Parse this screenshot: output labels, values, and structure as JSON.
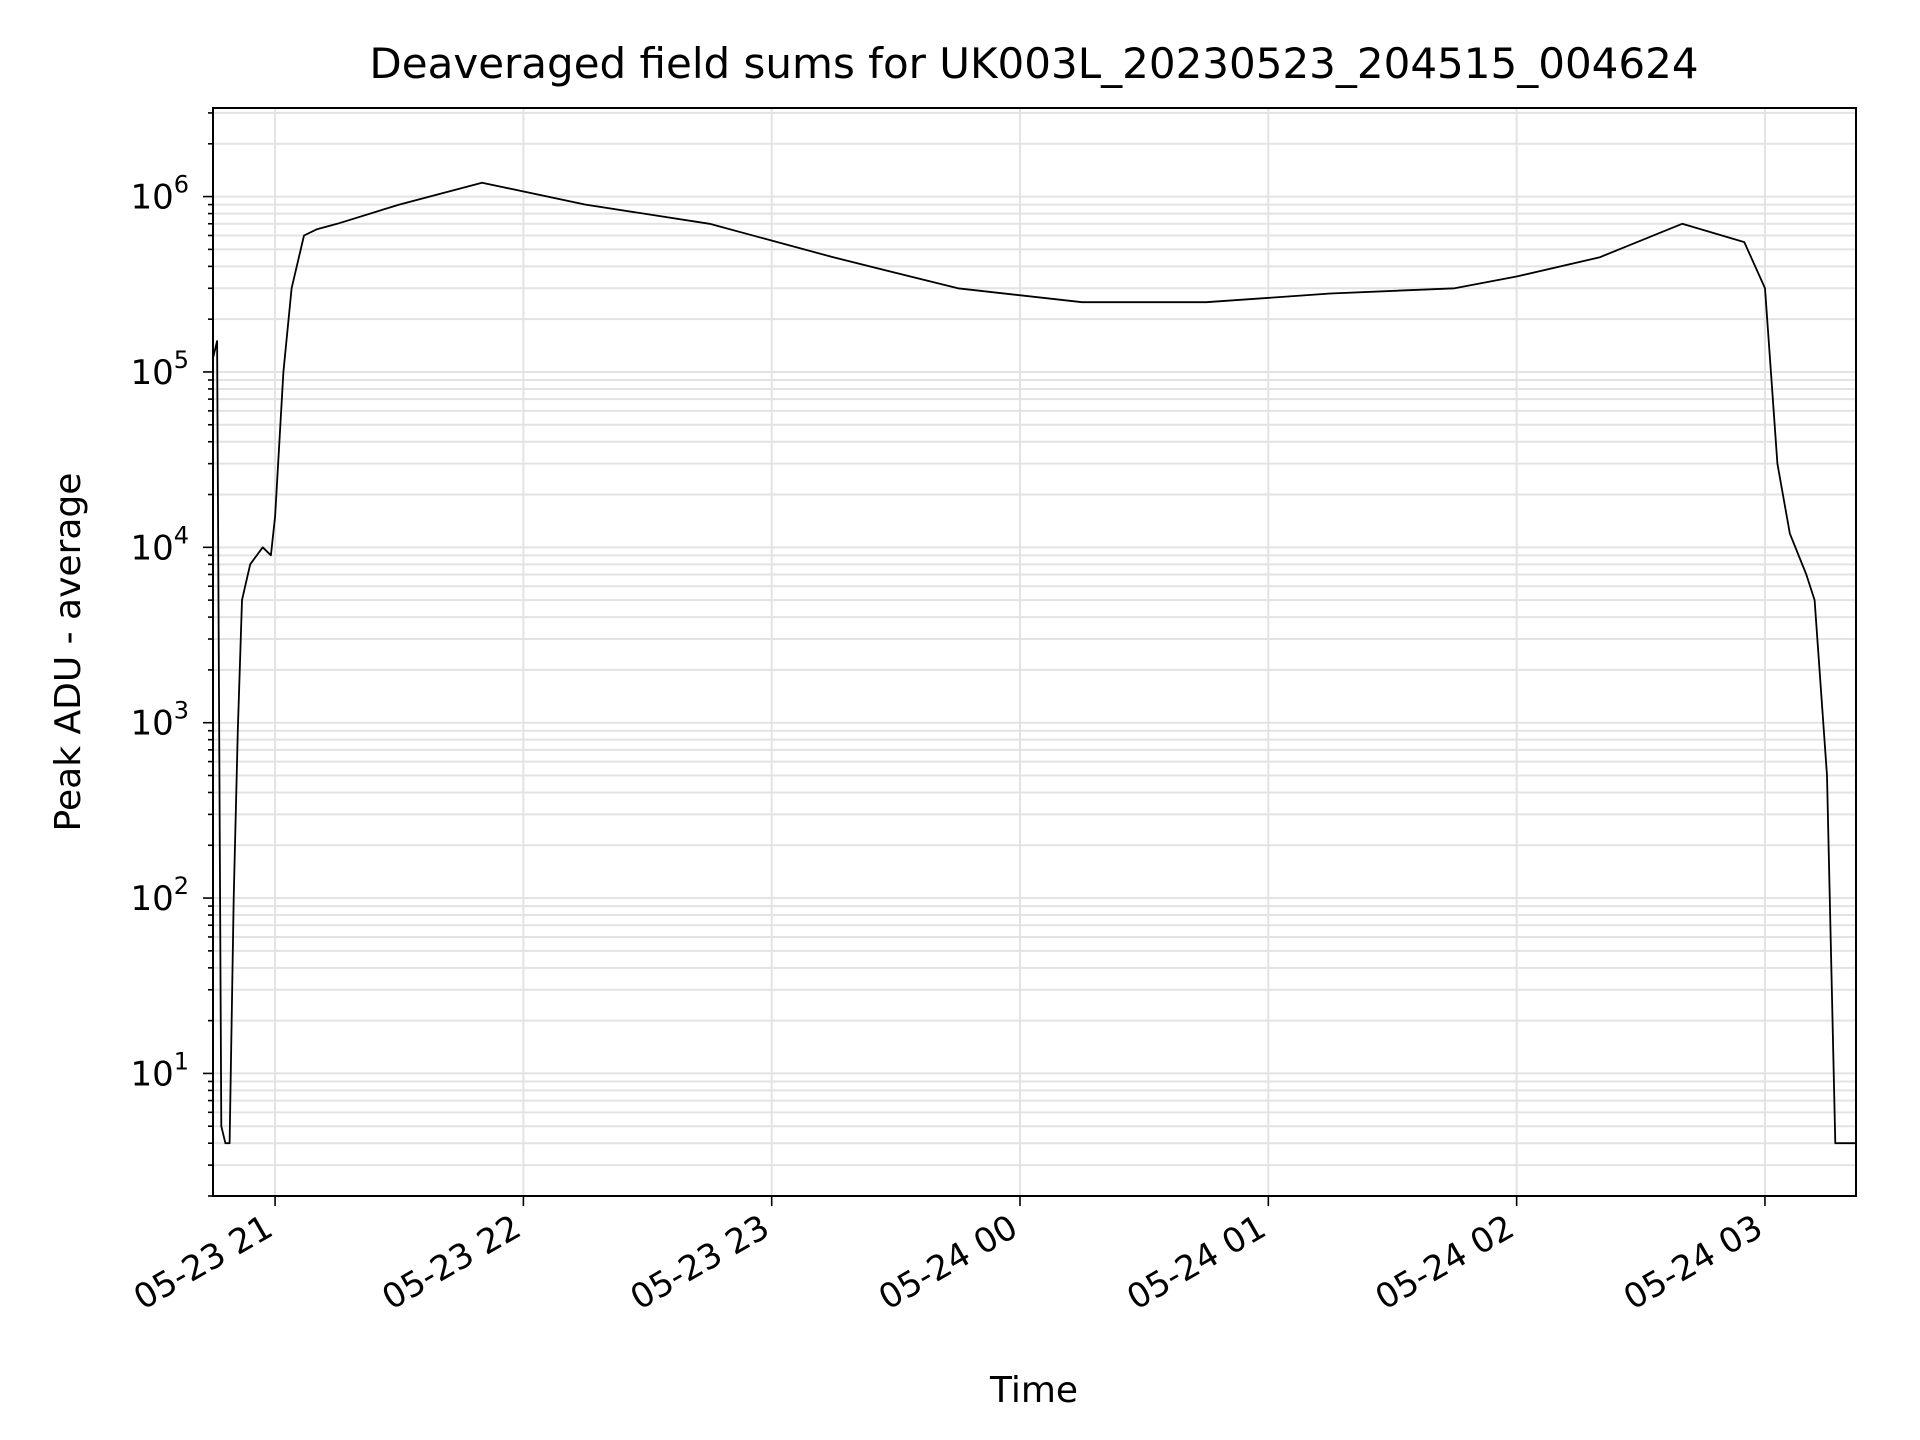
{
  "chart_data": {
    "type": "line",
    "title": "Deaveraged field sums for UK003L_20230523_204515_004624",
    "xlabel": "Time",
    "ylabel": "Peak ADU - average",
    "x_scale": "time",
    "y_scale": "log",
    "xlim": [
      "2023-05-23 20:45",
      "2023-05-24 03:22"
    ],
    "ylim": [
      2,
      3200000
    ],
    "grid": "major and minor",
    "line_color": "#000000",
    "x_ticks": [
      "05-23 21",
      "05-23 22",
      "05-23 23",
      "05-24 00",
      "05-24 01",
      "05-24 02",
      "05-24 03"
    ],
    "y_ticks": [
      {
        "base": "10",
        "exp": "1",
        "value": 10
      },
      {
        "base": "10",
        "exp": "2",
        "value": 100
      },
      {
        "base": "10",
        "exp": "3",
        "value": 1000
      },
      {
        "base": "10",
        "exp": "4",
        "value": 10000
      },
      {
        "base": "10",
        "exp": "5",
        "value": 100000
      },
      {
        "base": "10",
        "exp": "6",
        "value": 1000000
      }
    ],
    "series": [
      {
        "points": [
          [
            "2023-05-23 20:45",
            120000
          ],
          [
            "2023-05-23 20:46",
            150000
          ],
          [
            "2023-05-23 20:47",
            5
          ],
          [
            "2023-05-23 20:48",
            4
          ],
          [
            "2023-05-23 20:49",
            4
          ],
          [
            "2023-05-23 20:50",
            100
          ],
          [
            "2023-05-23 20:51",
            900
          ],
          [
            "2023-05-23 20:52",
            5000
          ],
          [
            "2023-05-23 20:54",
            8000
          ],
          [
            "2023-05-23 20:57",
            10000
          ],
          [
            "2023-05-23 20:59",
            9000
          ],
          [
            "2023-05-23 21:00",
            15000
          ],
          [
            "2023-05-23 21:02",
            100000
          ],
          [
            "2023-05-23 21:04",
            300000
          ],
          [
            "2023-05-23 21:07",
            600000
          ],
          [
            "2023-05-23 21:10",
            650000
          ],
          [
            "2023-05-23 21:15",
            700000
          ],
          [
            "2023-05-23 21:30",
            900000
          ],
          [
            "2023-05-23 21:50",
            1200000
          ],
          [
            "2023-05-23 22:15",
            900000
          ],
          [
            "2023-05-23 22:45",
            700000
          ],
          [
            "2023-05-23 23:15",
            450000
          ],
          [
            "2023-05-23 23:45",
            300000
          ],
          [
            "2023-05-24 00:15",
            250000
          ],
          [
            "2023-05-24 00:45",
            250000
          ],
          [
            "2023-05-24 01:15",
            280000
          ],
          [
            "2023-05-24 01:45",
            300000
          ],
          [
            "2023-05-24 02:00",
            350000
          ],
          [
            "2023-05-24 02:20",
            450000
          ],
          [
            "2023-05-24 02:40",
            700000
          ],
          [
            "2023-05-24 02:55",
            550000
          ],
          [
            "2023-05-24 03:00",
            300000
          ],
          [
            "2023-05-24 03:03",
            30000
          ],
          [
            "2023-05-24 03:06",
            12000
          ],
          [
            "2023-05-24 03:10",
            7000
          ],
          [
            "2023-05-24 03:12",
            5000
          ],
          [
            "2023-05-24 03:15",
            500
          ],
          [
            "2023-05-24 03:17",
            4
          ],
          [
            "2023-05-24 03:22",
            4
          ]
        ]
      }
    ]
  }
}
